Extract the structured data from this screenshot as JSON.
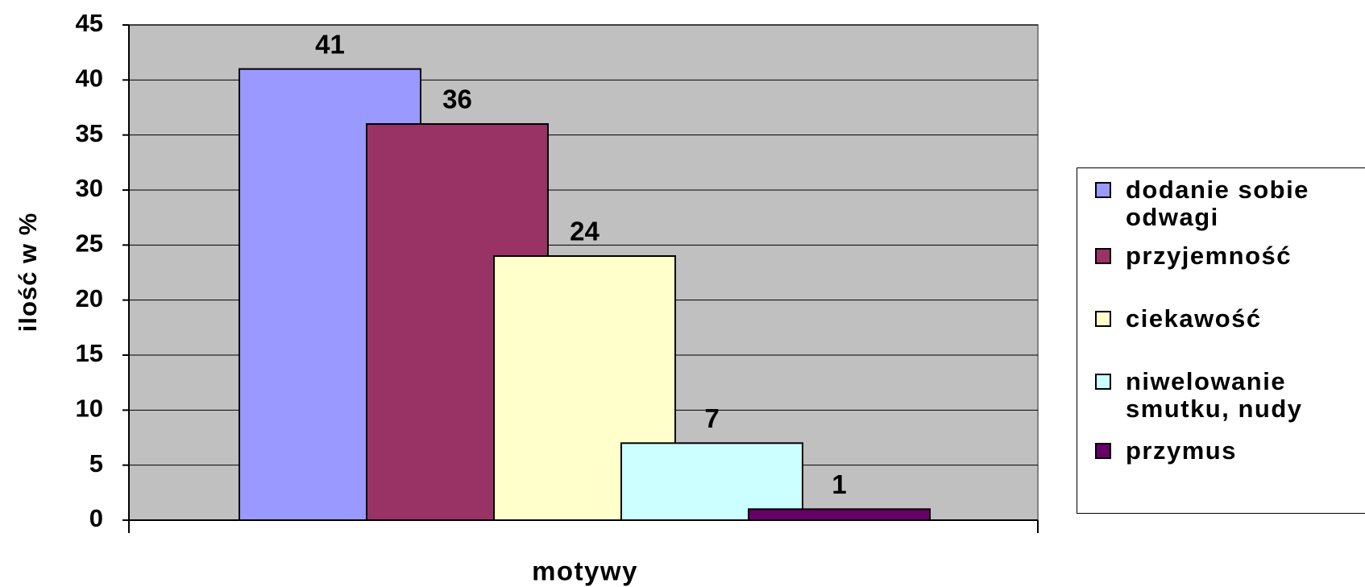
{
  "chart_data": {
    "type": "bar",
    "categories": [
      null
    ],
    "series": [
      {
        "name": "dodanie sobie odwagi",
        "color": "#9999ff",
        "values": [
          41
        ]
      },
      {
        "name": "przyjemność",
        "color": "#993366",
        "values": [
          36
        ]
      },
      {
        "name": "ciekawość",
        "color": "#ffffcc",
        "values": [
          24
        ]
      },
      {
        "name": "niwelowanie smutku, nudy",
        "color": "#ccffff",
        "values": [
          7
        ]
      },
      {
        "name": "przymus",
        "color": "#660066",
        "values": [
          1
        ]
      }
    ],
    "x_label": "motywy",
    "y_label": "ilość w %",
    "ylim": [
      0,
      45
    ],
    "yticks": [
      0,
      5,
      10,
      15,
      20,
      25,
      30,
      35,
      40,
      45
    ],
    "grid": true,
    "plot_background": "#c0c0c0",
    "legend": "right"
  }
}
